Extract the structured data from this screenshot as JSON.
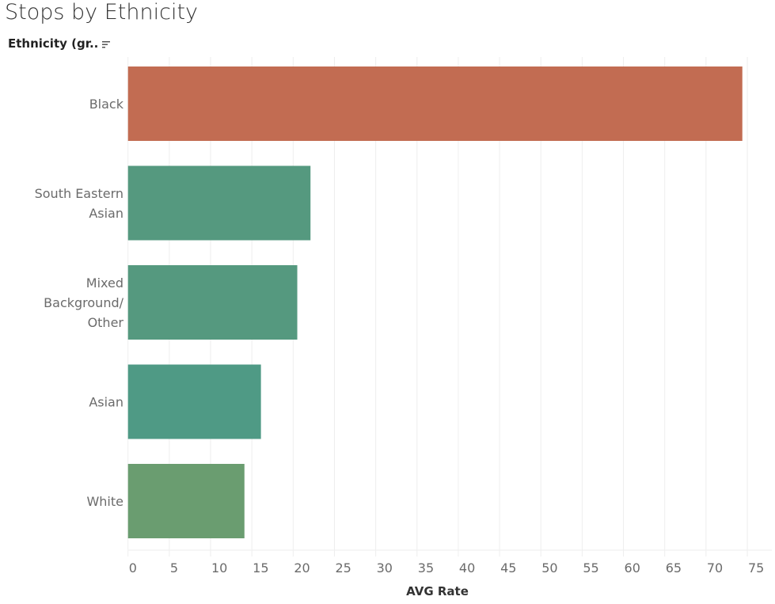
{
  "title": "Stops by Ethnicity",
  "y_header": "Ethnicity (gr..",
  "chart_data": {
    "type": "bar",
    "orientation": "horizontal",
    "title": "Stops by Ethnicity",
    "ylabel": "Ethnicity (gr..",
    "xlabel": "AVG Rate",
    "categories": [
      [
        "Black"
      ],
      [
        "South Eastern",
        "Asian"
      ],
      [
        "Mixed",
        "Background/",
        "Other"
      ],
      [
        "Asian"
      ],
      [
        "White"
      ]
    ],
    "values": [
      74.4,
      22.1,
      20.5,
      16.1,
      14.1
    ],
    "colors": [
      "#c26c52",
      "#55997f",
      "#55997f",
      "#4f9a85",
      "#6a9d70"
    ],
    "xlim": [
      0,
      75
    ],
    "xticks": [
      0,
      5,
      10,
      15,
      20,
      25,
      30,
      35,
      40,
      45,
      50,
      55,
      60,
      65,
      70,
      75
    ],
    "grid": "vertical"
  }
}
